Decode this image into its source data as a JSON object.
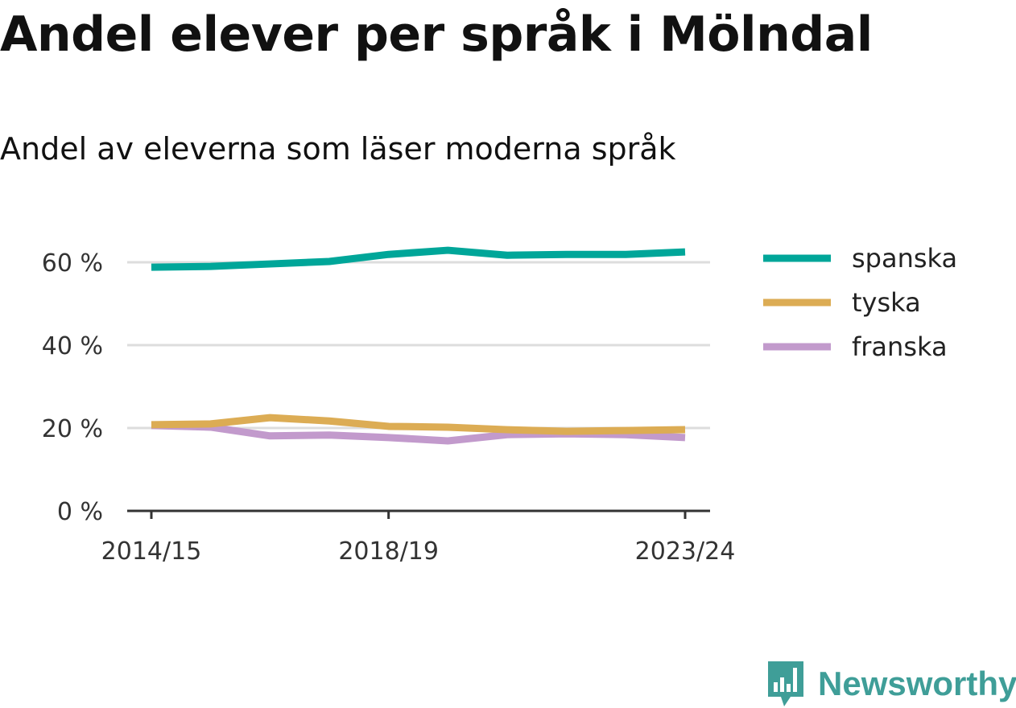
{
  "title": "Andel elever per språk i Mölndal",
  "subtitle": "Andel av eleverna som läser moderna språk",
  "logo": {
    "text": "Newsworthy",
    "color": "#3f9e98"
  },
  "chart_data": {
    "type": "line",
    "x": [
      "2014/15",
      "2015/16",
      "2016/17",
      "2017/18",
      "2018/19",
      "2019/20",
      "2020/21",
      "2021/22",
      "2022/23",
      "2023/24"
    ],
    "x_tick_labels": [
      "2014/15",
      "2018/19",
      "2023/24"
    ],
    "y_ticks": [
      0,
      20,
      40,
      60
    ],
    "y_tick_labels": [
      "0 %",
      "20 %",
      "40 %",
      "60 %"
    ],
    "ylim": [
      0,
      70
    ],
    "grid": "horizontal",
    "legend_placement": "right",
    "series": [
      {
        "name": "spanska",
        "color": "#00a699",
        "values": [
          58.8,
          59.0,
          59.6,
          60.2,
          61.9,
          62.9,
          61.7,
          61.9,
          61.9,
          62.5
        ]
      },
      {
        "name": "tyska",
        "color": "#dcac54",
        "values": [
          20.8,
          21.0,
          22.5,
          21.7,
          20.4,
          20.2,
          19.6,
          19.2,
          19.4,
          19.6
        ]
      },
      {
        "name": "franska",
        "color": "#c29acc",
        "values": [
          20.6,
          20.2,
          18.1,
          18.3,
          17.7,
          16.9,
          18.4,
          18.6,
          18.4,
          17.7
        ]
      }
    ]
  }
}
